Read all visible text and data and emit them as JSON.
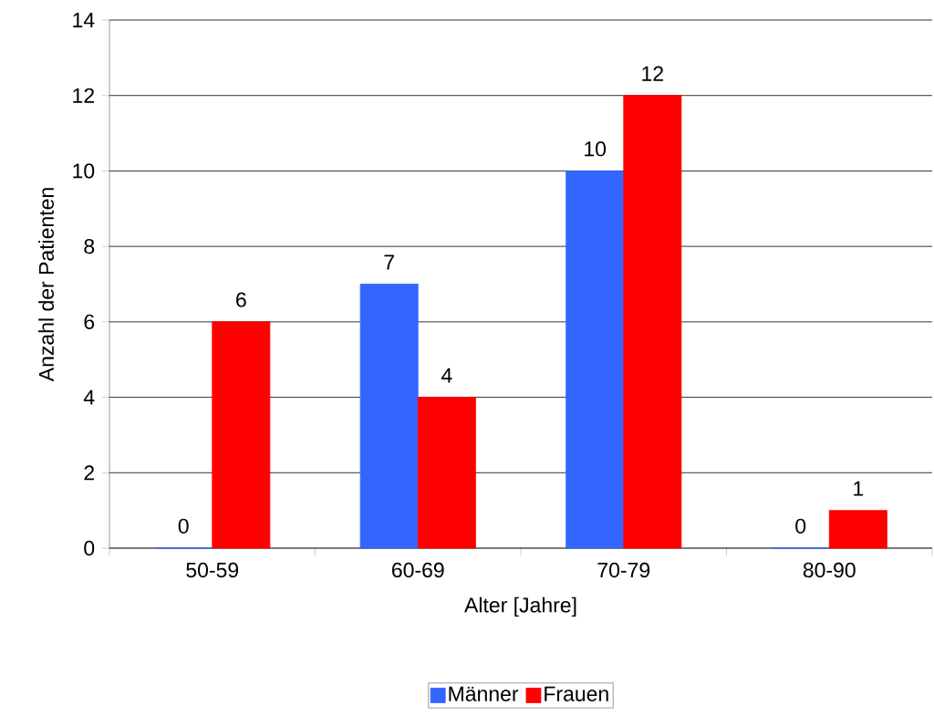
{
  "chart_data": {
    "type": "bar",
    "xlabel": "Alter [Jahre]",
    "ylabel": "Anzahl der Patienten",
    "categories": [
      "50-59",
      "60-69",
      "70-79",
      "80-90"
    ],
    "series": [
      {
        "name": "Männer",
        "color": "#3366ff",
        "values": [
          0,
          7,
          10,
          0
        ]
      },
      {
        "name": "Frauen",
        "color": "#ff0000",
        "values": [
          6,
          4,
          12,
          1
        ]
      }
    ],
    "ylim": [
      0,
      14
    ],
    "yticks": [
      0,
      2,
      4,
      6,
      8,
      10,
      12,
      14
    ],
    "grid": "y",
    "legend": "bottom",
    "data_labels": true
  }
}
